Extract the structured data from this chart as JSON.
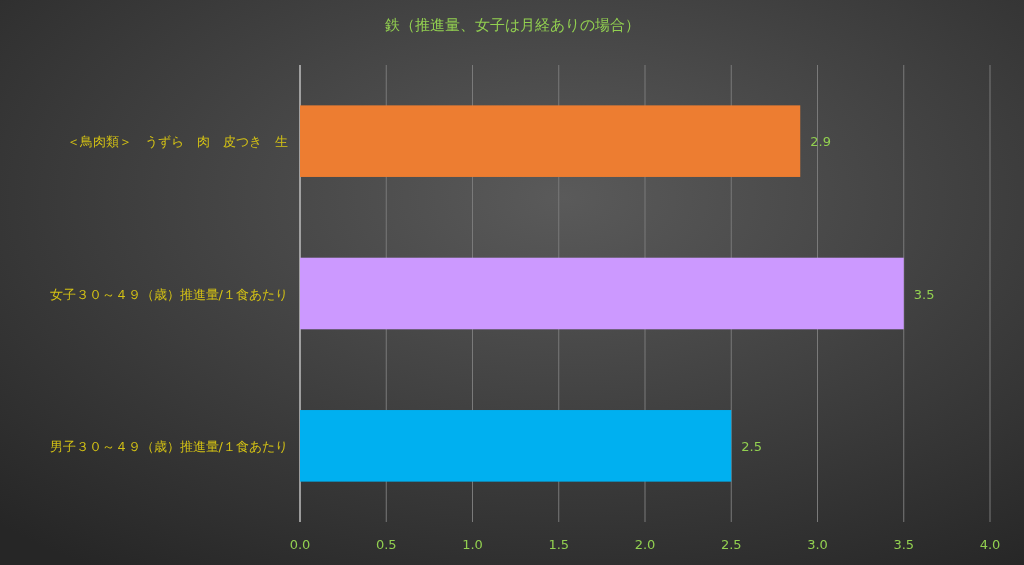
{
  "chart_data": {
    "type": "bar",
    "orientation": "horizontal",
    "title": "鉄（推進量、女子は月経ありの場合）",
    "categories": [
      "＜鳥肉類＞　うずら　肉　皮つき　生",
      "女子３０～４９（歳）推進量/１食あたり",
      "男子３０～４９（歳）推進量/１食あたり"
    ],
    "values": [
      2.9,
      3.5,
      2.5
    ],
    "colors": [
      "#ed7d31",
      "#cc99ff",
      "#00b0f0"
    ],
    "xlim": [
      0,
      4
    ],
    "xticks": [
      {
        "value": 0,
        "label": "0.0"
      },
      {
        "value": 0.5,
        "label": "0.5"
      },
      {
        "value": 1,
        "label": "1.0"
      },
      {
        "value": 1.5,
        "label": "1.5"
      },
      {
        "value": 2,
        "label": "2.0"
      },
      {
        "value": 2.5,
        "label": "2.5"
      },
      {
        "value": 3,
        "label": "3.0"
      },
      {
        "value": 3.5,
        "label": "3.5"
      },
      {
        "value": 4,
        "label": "4.0"
      }
    ],
    "grid": "x",
    "data_labels": true
  }
}
